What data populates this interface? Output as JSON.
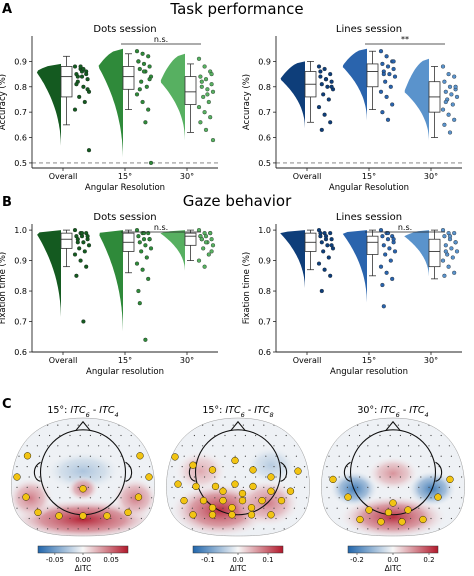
{
  "panels": [
    {
      "letter": "A",
      "title": "Task performance"
    },
    {
      "letter": "B",
      "title": "Gaze behavior"
    },
    {
      "letter": "C",
      "title": ""
    }
  ],
  "colors": {
    "dots_dark": "#145a20",
    "dots_mid": "#2f8a3a",
    "dots_light": "#57b061",
    "lines_dark": "#0e3e7a",
    "lines_mid": "#2a64ad",
    "lines_light": "#5a93cc",
    "chance": "#777777"
  },
  "chart_data": [
    {
      "type": "violin",
      "title": "Dots session",
      "xlabel": "Angular Resolution",
      "ylabel": "Accuracy (%)",
      "categories": [
        "Overall",
        "15°",
        "30°"
      ],
      "ylim": [
        0.48,
        1.0
      ],
      "yticks": [
        "0.5",
        "0.6",
        "0.7",
        "0.8",
        "0.9"
      ],
      "chance_line": 0.5,
      "significance": {
        "between": [
          "15°",
          "30°"
        ],
        "label": "n.s."
      },
      "series": [
        {
          "box": {
            "q1": 0.76,
            "median": 0.84,
            "q3": 0.88,
            "whisker_low": 0.65,
            "whisker_high": 0.92
          },
          "density": {
            "min": 0.55,
            "max": 0.89,
            "peak": 0.86
          },
          "points": [
            0.88,
            0.87,
            0.86,
            0.85,
            0.84,
            0.83,
            0.82,
            0.8,
            0.78,
            0.76,
            0.74,
            0.71,
            0.88,
            0.85,
            0.81,
            0.86,
            0.79,
            0.84,
            0.87,
            0.55
          ]
        },
        {
          "box": {
            "q1": 0.79,
            "median": 0.84,
            "q3": 0.88,
            "whisker_low": 0.71,
            "whisker_high": 0.93
          },
          "density": {
            "min": 0.5,
            "max": 0.95,
            "peak": 0.88
          },
          "points": [
            0.94,
            0.93,
            0.92,
            0.9,
            0.89,
            0.88,
            0.87,
            0.86,
            0.84,
            0.82,
            0.8,
            0.77,
            0.74,
            0.71,
            0.9,
            0.86,
            0.83,
            0.79,
            0.66,
            0.5
          ]
        },
        {
          "box": {
            "q1": 0.73,
            "median": 0.78,
            "q3": 0.84,
            "whisker_low": 0.62,
            "whisker_high": 0.89
          },
          "density": {
            "min": 0.58,
            "max": 0.93,
            "peak": 0.82
          },
          "points": [
            0.91,
            0.88,
            0.86,
            0.84,
            0.83,
            0.81,
            0.8,
            0.79,
            0.78,
            0.76,
            0.74,
            0.72,
            0.7,
            0.68,
            0.66,
            0.63,
            0.85,
            0.82,
            0.77,
            0.59
          ]
        }
      ]
    },
    {
      "type": "violin",
      "title": "Lines session",
      "xlabel": "Angular Resolution",
      "ylabel": "Accuracy (%)",
      "categories": [
        "Overall",
        "15°",
        "30°"
      ],
      "ylim": [
        0.48,
        1.0
      ],
      "yticks": [
        "0.5",
        "0.6",
        "0.7",
        "0.8",
        "0.9"
      ],
      "chance_line": 0.5,
      "significance": {
        "between": [
          "15°",
          "30°"
        ],
        "label": "**"
      },
      "series": [
        {
          "box": {
            "q1": 0.76,
            "median": 0.81,
            "q3": 0.86,
            "whisker_low": 0.66,
            "whisker_high": 0.9
          },
          "density": {
            "min": 0.63,
            "max": 0.9,
            "peak": 0.83
          },
          "points": [
            0.88,
            0.87,
            0.85,
            0.84,
            0.83,
            0.82,
            0.81,
            0.8,
            0.79,
            0.77,
            0.75,
            0.72,
            0.69,
            0.66,
            0.86,
            0.83,
            0.8,
            0.63
          ]
        },
        {
          "box": {
            "q1": 0.8,
            "median": 0.86,
            "q3": 0.89,
            "whisker_low": 0.71,
            "whisker_high": 0.94
          },
          "density": {
            "min": 0.66,
            "max": 0.95,
            "peak": 0.88
          },
          "points": [
            0.94,
            0.92,
            0.9,
            0.89,
            0.88,
            0.87,
            0.86,
            0.85,
            0.84,
            0.82,
            0.8,
            0.78,
            0.76,
            0.73,
            0.7,
            0.67,
            0.9,
            0.85
          ]
        },
        {
          "box": {
            "q1": 0.7,
            "median": 0.76,
            "q3": 0.82,
            "whisker_low": 0.6,
            "whisker_high": 0.88
          },
          "density": {
            "min": 0.58,
            "max": 0.91,
            "peak": 0.78
          },
          "points": [
            0.88,
            0.85,
            0.84,
            0.82,
            0.8,
            0.79,
            0.78,
            0.77,
            0.76,
            0.75,
            0.73,
            0.71,
            0.69,
            0.67,
            0.65,
            0.62,
            0.8,
            0.74
          ]
        }
      ]
    },
    {
      "type": "violin",
      "title": "Dots session",
      "xlabel": "Angular resolution",
      "ylabel": "Fixation time (%)",
      "categories": [
        "Overall",
        "15°",
        "30°"
      ],
      "ylim": [
        0.6,
        1.02
      ],
      "yticks": [
        "0.6",
        "0.7",
        "0.8",
        "0.9",
        "1.0"
      ],
      "chance_line": null,
      "significance": {
        "between": [
          "15°",
          "30°"
        ],
        "label": "n.s."
      },
      "series": [
        {
          "box": {
            "q1": 0.94,
            "median": 0.97,
            "q3": 0.99,
            "whisker_low": 0.88,
            "whisker_high": 1.0
          },
          "density": {
            "min": 0.7,
            "max": 1.0,
            "peak": 0.99
          },
          "points": [
            1.0,
            0.99,
            0.99,
            0.98,
            0.98,
            0.97,
            0.97,
            0.96,
            0.95,
            0.94,
            0.93,
            0.92,
            0.9,
            0.88,
            0.85,
            0.99,
            0.98,
            0.96,
            0.7
          ]
        },
        {
          "box": {
            "q1": 0.93,
            "median": 0.96,
            "q3": 0.99,
            "whisker_low": 0.86,
            "whisker_high": 1.0
          },
          "density": {
            "min": 0.65,
            "max": 1.0,
            "peak": 0.99
          },
          "points": [
            1.0,
            0.99,
            0.99,
            0.98,
            0.97,
            0.97,
            0.96,
            0.95,
            0.94,
            0.93,
            0.91,
            0.89,
            0.87,
            0.84,
            0.8,
            0.99,
            0.97,
            0.76,
            0.64
          ]
        },
        {
          "box": {
            "q1": 0.95,
            "median": 0.98,
            "q3": 0.99,
            "whisker_low": 0.9,
            "whisker_high": 1.0
          },
          "density": {
            "min": 0.86,
            "max": 1.0,
            "peak": 0.99
          },
          "points": [
            1.0,
            0.99,
            0.99,
            0.98,
            0.98,
            0.97,
            0.97,
            0.96,
            0.95,
            0.94,
            0.92,
            0.9,
            0.88,
            0.99,
            0.98,
            0.96,
            0.93,
            0.97
          ]
        }
      ]
    },
    {
      "type": "violin",
      "title": "Lines session",
      "xlabel": "Angular resolution",
      "ylabel": "Fixation time (%)",
      "categories": [
        "Overall",
        "15°",
        "30°"
      ],
      "ylim": [
        0.6,
        1.02
      ],
      "yticks": [
        "0.6",
        "0.7",
        "0.8",
        "0.9",
        "1.0"
      ],
      "chance_line": null,
      "significance": {
        "between": [
          "15°",
          "30°"
        ],
        "label": "n.s."
      },
      "series": [
        {
          "box": {
            "q1": 0.93,
            "median": 0.96,
            "q3": 0.99,
            "whisker_low": 0.87,
            "whisker_high": 1.0
          },
          "density": {
            "min": 0.8,
            "max": 1.0,
            "peak": 0.99
          },
          "points": [
            1.0,
            0.99,
            0.99,
            0.98,
            0.97,
            0.97,
            0.96,
            0.95,
            0.94,
            0.93,
            0.91,
            0.89,
            0.87,
            0.85,
            0.99,
            0.98,
            0.95,
            0.8
          ]
        },
        {
          "box": {
            "q1": 0.92,
            "median": 0.96,
            "q3": 0.98,
            "whisker_low": 0.85,
            "whisker_high": 1.0
          },
          "density": {
            "min": 0.75,
            "max": 1.0,
            "peak": 0.99
          },
          "points": [
            1.0,
            0.99,
            0.98,
            0.98,
            0.97,
            0.96,
            0.95,
            0.94,
            0.93,
            0.92,
            0.9,
            0.88,
            0.86,
            0.84,
            0.82,
            0.99,
            0.97,
            0.75
          ]
        },
        {
          "box": {
            "q1": 0.88,
            "median": 0.93,
            "q3": 0.97,
            "whisker_low": 0.84,
            "whisker_high": 1.0
          },
          "density": {
            "min": 0.84,
            "max": 1.0,
            "peak": 0.98
          },
          "points": [
            1.0,
            0.99,
            0.99,
            0.98,
            0.97,
            0.96,
            0.95,
            0.94,
            0.93,
            0.92,
            0.91,
            0.9,
            0.88,
            0.86,
            0.85,
            0.98,
            0.96,
            0.93
          ]
        }
      ]
    },
    {
      "type": "heatmap",
      "subtype": "scalp-topography",
      "title_prefix": "15°: ",
      "title_a": "ITC",
      "title_a_sub": "6",
      "title_sep": " - ",
      "title_b": "ITC",
      "title_b_sub": "4",
      "colorbar": {
        "label": "ΔITC",
        "ticks": [
          "-0.05",
          "0.00",
          "0.05"
        ],
        "range": [
          -0.08,
          0.08
        ]
      },
      "blobs": [
        {
          "x": 0.5,
          "y": 0.86,
          "w": 0.88,
          "h": 0.22,
          "v": 0.95
        },
        {
          "x": 0.15,
          "y": 0.68,
          "w": 0.18,
          "h": 0.22,
          "v": 0.55
        },
        {
          "x": 0.85,
          "y": 0.68,
          "w": 0.18,
          "h": 0.22,
          "v": 0.55
        },
        {
          "x": 0.5,
          "y": 0.45,
          "w": 0.4,
          "h": 0.22,
          "v": -0.35
        },
        {
          "x": 0.5,
          "y": 0.6,
          "w": 0.08,
          "h": 0.08,
          "v": 0.6
        }
      ],
      "sig": [
        [
          0.13,
          0.32
        ],
        [
          0.88,
          0.32
        ],
        [
          0.06,
          0.5
        ],
        [
          0.94,
          0.5
        ],
        [
          0.12,
          0.67
        ],
        [
          0.87,
          0.67
        ],
        [
          0.2,
          0.8
        ],
        [
          0.8,
          0.8
        ],
        [
          0.34,
          0.83
        ],
        [
          0.5,
          0.83
        ],
        [
          0.66,
          0.83
        ],
        [
          0.5,
          0.6
        ]
      ]
    },
    {
      "type": "heatmap",
      "subtype": "scalp-topography",
      "title_prefix": "15°: ",
      "title_a": "ITC",
      "title_a_sub": "6",
      "title_sep": " - ",
      "title_b": "ITC",
      "title_b_sub": "8",
      "colorbar": {
        "label": "ΔITC",
        "ticks": [
          "-0.1",
          "0.0",
          "0.1"
        ],
        "range": [
          -0.15,
          0.15
        ]
      },
      "blobs": [
        {
          "x": 0.38,
          "y": 0.78,
          "w": 0.55,
          "h": 0.34,
          "v": 0.9
        },
        {
          "x": 0.7,
          "y": 0.72,
          "w": 0.3,
          "h": 0.28,
          "v": 0.55
        },
        {
          "x": 0.25,
          "y": 0.45,
          "w": 0.22,
          "h": 0.22,
          "v": 0.35
        },
        {
          "x": 0.72,
          "y": 0.4,
          "w": 0.22,
          "h": 0.2,
          "v": -0.3
        }
      ],
      "sig": [
        [
          0.08,
          0.33
        ],
        [
          0.2,
          0.4
        ],
        [
          0.33,
          0.44
        ],
        [
          0.48,
          0.36
        ],
        [
          0.6,
          0.44
        ],
        [
          0.72,
          0.5
        ],
        [
          0.1,
          0.56
        ],
        [
          0.22,
          0.58
        ],
        [
          0.35,
          0.58
        ],
        [
          0.48,
          0.56
        ],
        [
          0.6,
          0.58
        ],
        [
          0.72,
          0.62
        ],
        [
          0.85,
          0.62
        ],
        [
          0.14,
          0.7
        ],
        [
          0.27,
          0.7
        ],
        [
          0.4,
          0.7
        ],
        [
          0.53,
          0.7
        ],
        [
          0.66,
          0.7
        ],
        [
          0.79,
          0.7
        ],
        [
          0.2,
          0.82
        ],
        [
          0.33,
          0.82
        ],
        [
          0.46,
          0.82
        ],
        [
          0.59,
          0.82
        ],
        [
          0.72,
          0.82
        ],
        [
          0.4,
          0.62
        ],
        [
          0.53,
          0.64
        ],
        [
          0.46,
          0.76
        ],
        [
          0.59,
          0.76
        ],
        [
          0.33,
          0.76
        ],
        [
          0.9,
          0.45
        ]
      ]
    },
    {
      "type": "heatmap",
      "subtype": "scalp-topography",
      "title_prefix": "30°: ",
      "title_a": "ITC",
      "title_a_sub": "6",
      "title_sep": " - ",
      "title_b": "ITC",
      "title_b_sub": "4",
      "colorbar": {
        "label": "ΔITC",
        "ticks": [
          "-0.2",
          "0.0",
          "0.2"
        ],
        "range": [
          -0.25,
          0.25
        ]
      },
      "blobs": [
        {
          "x": 0.5,
          "y": 0.84,
          "w": 0.6,
          "h": 0.24,
          "v": 0.9
        },
        {
          "x": 0.24,
          "y": 0.6,
          "w": 0.2,
          "h": 0.18,
          "v": -0.85
        },
        {
          "x": 0.76,
          "y": 0.6,
          "w": 0.2,
          "h": 0.18,
          "v": -0.85
        },
        {
          "x": 0.5,
          "y": 0.47,
          "w": 0.22,
          "h": 0.16,
          "v": 0.45
        }
      ],
      "sig": [
        [
          0.1,
          0.52
        ],
        [
          0.88,
          0.52
        ],
        [
          0.2,
          0.67
        ],
        [
          0.8,
          0.67
        ],
        [
          0.34,
          0.78
        ],
        [
          0.47,
          0.8
        ],
        [
          0.6,
          0.78
        ],
        [
          0.28,
          0.86
        ],
        [
          0.42,
          0.88
        ],
        [
          0.56,
          0.88
        ],
        [
          0.7,
          0.86
        ],
        [
          0.5,
          0.72
        ]
      ]
    }
  ]
}
